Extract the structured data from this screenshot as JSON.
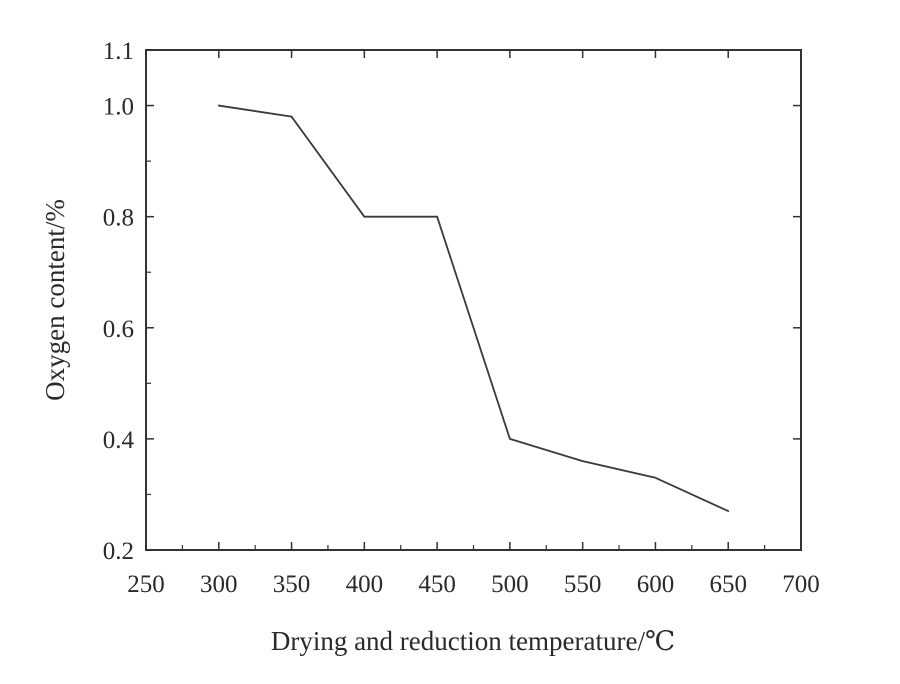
{
  "chart_data": {
    "type": "line",
    "title": "",
    "xlabel": "Drying and reduction temperature/℃",
    "ylabel": "Oxygen content/%",
    "xlim": [
      250,
      700
    ],
    "ylim": [
      0.2,
      1.1
    ],
    "x_ticks": [
      250,
      300,
      350,
      400,
      450,
      500,
      550,
      600,
      650,
      700
    ],
    "x_tick_labels": [
      "250",
      "300",
      "350",
      "400",
      "450",
      "500",
      "550",
      "600",
      "650",
      "700"
    ],
    "y_ticks": [
      0.2,
      0.4,
      0.6,
      0.8,
      1.0,
      1.1
    ],
    "y_tick_labels": [
      "0.2",
      "0.4",
      "0.6",
      "0.8",
      "1.0",
      "1.1"
    ],
    "grid": false,
    "legend": "none",
    "series": [
      {
        "x": [
          300,
          350,
          400,
          450,
          500,
          550,
          600,
          650
        ],
        "y": [
          1.0,
          0.98,
          0.8,
          0.8,
          0.4,
          0.36,
          0.33,
          0.27
        ]
      }
    ],
    "line_color": "#3a3a3a",
    "axis_color": "#333333"
  }
}
